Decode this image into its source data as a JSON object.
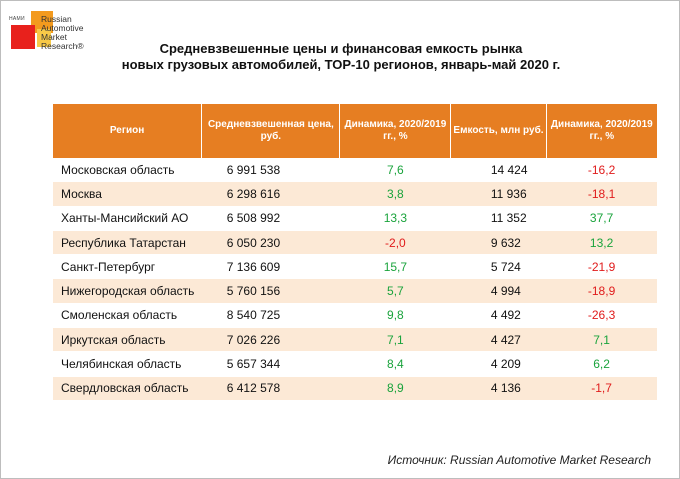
{
  "logo": {
    "nami": "НАМИ",
    "brand_lines": [
      "Russian",
      "Automotive",
      "Market",
      "Research®"
    ]
  },
  "title": {
    "line1": "Средневзвешенные цены и финансовая емкость рынка",
    "line2": "новых грузовых автомобилей, ТОР-10 регионов, январь-май 2020 г."
  },
  "colors": {
    "header": "#e67e22",
    "stripe": "#fce9d6",
    "positive": "#1aa33c",
    "negative": "#e01b1b"
  },
  "table": {
    "headers": [
      "Регион",
      "Средневзвешенная цена, руб.",
      "Динамика, 2020/2019 гг., %",
      "Емкость, млн руб.",
      "Динамика, 2020/2019 гг., %"
    ],
    "rows": [
      {
        "region": "Московская область",
        "price": "6 991 538",
        "dyn_price": "7,6",
        "capacity": "14 424",
        "dyn_capacity": "-16,2"
      },
      {
        "region": "Москва",
        "price": "6 298 616",
        "dyn_price": "3,8",
        "capacity": "11 936",
        "dyn_capacity": "-18,1"
      },
      {
        "region": "Ханты-Мансийский АО",
        "price": "6 508 992",
        "dyn_price": "13,3",
        "capacity": "11 352",
        "dyn_capacity": "37,7"
      },
      {
        "region": "Республика Татарстан",
        "price": "6 050 230",
        "dyn_price": "-2,0",
        "capacity": "9 632",
        "dyn_capacity": "13,2"
      },
      {
        "region": "Санкт-Петербург",
        "price": "7 136 609",
        "dyn_price": "15,7",
        "capacity": "5 724",
        "dyn_capacity": "-21,9"
      },
      {
        "region": "Нижегородская область",
        "price": "5 760 156",
        "dyn_price": "5,7",
        "capacity": "4 994",
        "dyn_capacity": "-18,9"
      },
      {
        "region": "Смоленская область",
        "price": "8 540 725",
        "dyn_price": "9,8",
        "capacity": "4 492",
        "dyn_capacity": "-26,3"
      },
      {
        "region": "Иркутская область",
        "price": "7 026 226",
        "dyn_price": "7,1",
        "capacity": "4 427",
        "dyn_capacity": "7,1"
      },
      {
        "region": "Челябинская область",
        "price": "5 657 344",
        "dyn_price": "8,4",
        "capacity": "4 209",
        "dyn_capacity": "6,2"
      },
      {
        "region": "Свердловская область",
        "price": "6 412 578",
        "dyn_price": "8,9",
        "capacity": "4 136",
        "dyn_capacity": "-1,7"
      }
    ]
  },
  "source": "Источник: Russian Automotive Market Research"
}
